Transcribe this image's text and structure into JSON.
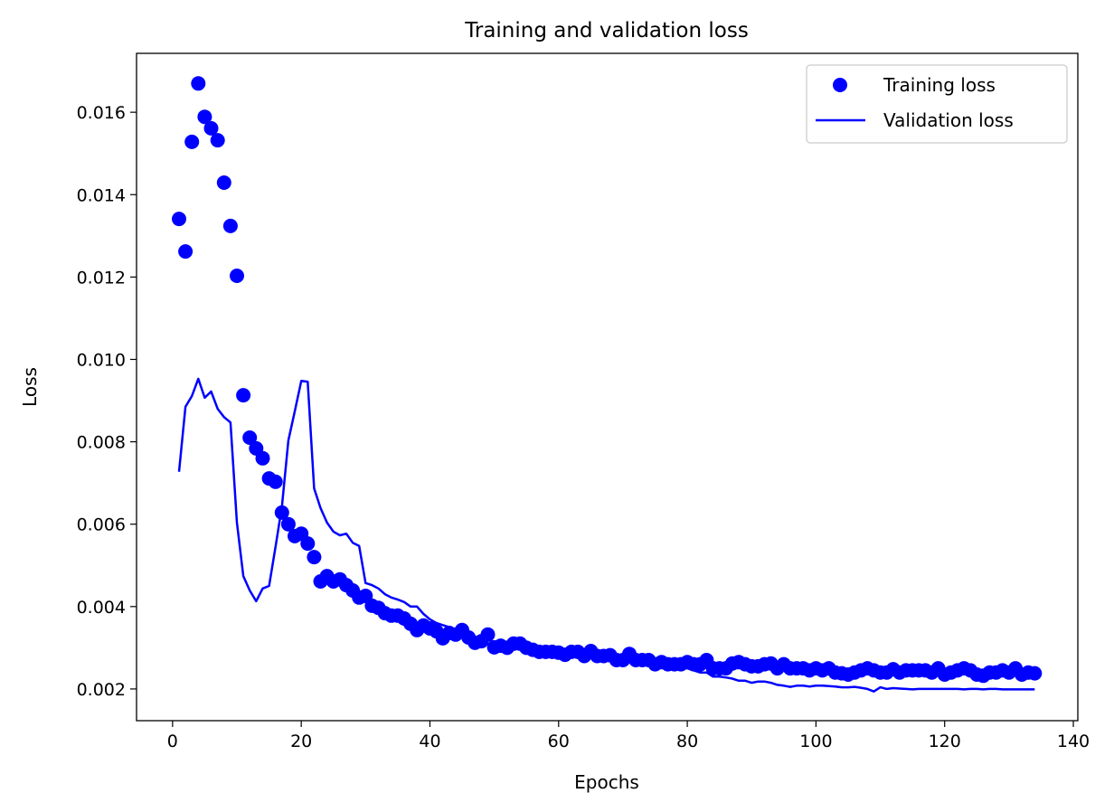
{
  "chart_data": {
    "type": "line",
    "title": "Training and validation loss",
    "xlabel": "Epochs",
    "ylabel": "Loss",
    "xlim": [
      -5.6,
      140.7
    ],
    "ylim": [
      0.00123,
      0.01743
    ],
    "xticks": [
      0,
      20,
      40,
      60,
      80,
      100,
      120,
      140
    ],
    "xtick_labels": [
      "0",
      "20",
      "40",
      "60",
      "80",
      "100",
      "120",
      "140"
    ],
    "yticks": [
      0.002,
      0.004,
      0.006,
      0.008,
      0.01,
      0.012,
      0.014,
      0.016
    ],
    "ytick_labels": [
      "0.002",
      "0.004",
      "0.006",
      "0.008",
      "0.010",
      "0.012",
      "0.014",
      "0.016"
    ],
    "grid": false,
    "legend_position": "top-right",
    "x_start": 1,
    "series": [
      {
        "name": "Training loss",
        "style": "markers",
        "color": "#0000ff",
        "values": [
          0.01341,
          0.01262,
          0.01528,
          0.0167,
          0.01589,
          0.01561,
          0.01532,
          0.01429,
          0.01324,
          0.01203,
          0.00913,
          0.0081,
          0.00784,
          0.0076,
          0.00711,
          0.00703,
          0.00628,
          0.006,
          0.00571,
          0.00577,
          0.00553,
          0.0052,
          0.00461,
          0.00474,
          0.00461,
          0.00466,
          0.00452,
          0.00439,
          0.00422,
          0.00426,
          0.00402,
          0.00397,
          0.00384,
          0.00378,
          0.00378,
          0.00371,
          0.00358,
          0.00343,
          0.00354,
          0.00347,
          0.0034,
          0.00323,
          0.00336,
          0.00332,
          0.00343,
          0.00325,
          0.00312,
          0.00316,
          0.00332,
          0.00301,
          0.00305,
          0.003,
          0.0031,
          0.0031,
          0.003,
          0.00295,
          0.0029,
          0.0029,
          0.0029,
          0.00288,
          0.00283,
          0.0029,
          0.0029,
          0.0028,
          0.00292,
          0.0028,
          0.0028,
          0.00282,
          0.0027,
          0.0027,
          0.00285,
          0.0027,
          0.0027,
          0.0027,
          0.0026,
          0.00265,
          0.0026,
          0.0026,
          0.0026,
          0.00265,
          0.0026,
          0.0026,
          0.0027,
          0.0025,
          0.0025,
          0.0025,
          0.00262,
          0.00265,
          0.0026,
          0.00255,
          0.00255,
          0.0026,
          0.00262,
          0.0025,
          0.0026,
          0.0025,
          0.0025,
          0.0025,
          0.00245,
          0.0025,
          0.00245,
          0.0025,
          0.0024,
          0.00238,
          0.00235,
          0.0024,
          0.00245,
          0.0025,
          0.00245,
          0.0024,
          0.0024,
          0.00248,
          0.0024,
          0.00245,
          0.00245,
          0.00245,
          0.00245,
          0.0024,
          0.0025,
          0.00235,
          0.0024,
          0.00245,
          0.0025,
          0.00245,
          0.00235,
          0.00232,
          0.0024,
          0.0024,
          0.00245,
          0.0024,
          0.0025,
          0.00235,
          0.0024,
          0.00238
        ]
      },
      {
        "name": "Validation loss",
        "style": "line",
        "color": "#0000ff",
        "values": [
          0.00727,
          0.00885,
          0.00911,
          0.00953,
          0.00907,
          0.00922,
          0.0088,
          0.0086,
          0.00847,
          0.00604,
          0.00474,
          0.00439,
          0.00413,
          0.00444,
          0.0045,
          0.00545,
          0.00643,
          0.00803,
          0.00874,
          0.00948,
          0.00946,
          0.00687,
          0.00639,
          0.00604,
          0.00582,
          0.00573,
          0.00577,
          0.00555,
          0.00547,
          0.00457,
          0.00452,
          0.00444,
          0.0043,
          0.00422,
          0.00417,
          0.00411,
          0.004,
          0.004,
          0.00382,
          0.00369,
          0.0036,
          0.00355,
          0.0035,
          0.0034,
          0.0034,
          0.0033,
          0.0032,
          0.0032,
          0.0031,
          0.0031,
          0.0031,
          0.003,
          0.003,
          0.003,
          0.003,
          0.0029,
          0.0029,
          0.0029,
          0.0029,
          0.0029,
          0.0029,
          0.0028,
          0.0028,
          0.0028,
          0.0028,
          0.0028,
          0.0028,
          0.0027,
          0.0027,
          0.0027,
          0.0027,
          0.0027,
          0.0027,
          0.0026,
          0.0026,
          0.0026,
          0.0026,
          0.0026,
          0.0025,
          0.0025,
          0.00245,
          0.0024,
          0.0024,
          0.0023,
          0.0023,
          0.00228,
          0.00225,
          0.0022,
          0.0022,
          0.00215,
          0.00218,
          0.00218,
          0.00215,
          0.0021,
          0.00208,
          0.00205,
          0.00208,
          0.00208,
          0.00206,
          0.00208,
          0.00208,
          0.00207,
          0.00206,
          0.00204,
          0.00204,
          0.00205,
          0.00203,
          0.002,
          0.00194,
          0.00204,
          0.002,
          0.00202,
          0.00201,
          0.002,
          0.00199,
          0.002,
          0.002,
          0.002,
          0.002,
          0.002,
          0.002,
          0.002,
          0.00199,
          0.002,
          0.002,
          0.00199,
          0.002,
          0.002,
          0.00199,
          0.00199,
          0.00199,
          0.00199,
          0.00199,
          0.00199
        ]
      }
    ]
  }
}
